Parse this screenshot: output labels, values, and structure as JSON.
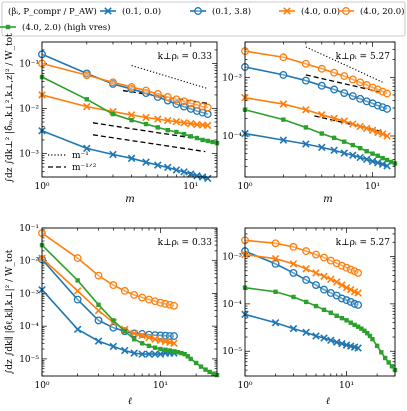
{
  "figure": {
    "y_label_top": "∫dz ∫dk⊥² |δ̂ₘ,k⊥²,k⊥,z|² / W_tot",
    "y_label_bottom": "∫dz ∫dk∥ |δ̂ℓ,k∥,k⊥|² / W_tot",
    "x_label_top": "m",
    "x_label_bottom": "ℓ"
  },
  "legend": {
    "title": "(βᵢ, P_compr / P_AW)",
    "placement": "top",
    "entries": [
      {
        "label": "(0.1, 0.0)",
        "color": "#1f77b4",
        "marker": "x"
      },
      {
        "label": "(0.1, 3.8)",
        "color": "#1f77b4",
        "marker": "o"
      },
      {
        "label": "(4.0, 0.0)",
        "color": "#ff7f0e",
        "marker": "x"
      },
      {
        "label": "(4.0, 20.0)",
        "color": "#ff7f0e",
        "marker": "o"
      },
      {
        "label": "(4.0, 2.0) (high vres)",
        "color": "#2ca02c",
        "marker": "s"
      }
    ]
  },
  "guide_legend": [
    {
      "label": "m⁻¹",
      "style": "dotted"
    },
    {
      "label": "m⁻¹ᐟ²",
      "style": "dashed"
    }
  ],
  "chart_data": [
    {
      "type": "line",
      "panel": "top-left",
      "annotation": "k⊥ρᵢ = 0.33",
      "xlabel": "m",
      "ylabel": "∫dz ∫dk⊥² |δ̂ₘ,k⊥²,k⊥,z|² / W_tot",
      "xscale": "log",
      "yscale": "log",
      "xlim": [
        1,
        15
      ],
      "ylim": [
        0.0003,
        0.3
      ],
      "xticks": [
        {
          "v": 1,
          "label": "10⁰"
        },
        {
          "v": 10,
          "label": "10¹"
        }
      ],
      "yticks": [
        {
          "v": 0.001,
          "label": "10⁻³"
        },
        {
          "v": 0.01,
          "label": "10⁻²"
        },
        {
          "v": 0.1,
          "label": "10⁻¹"
        }
      ],
      "series": [
        {
          "name": "(0.1, 0.0)",
          "color": "#1f77b4",
          "marker": "x",
          "x": [
            1,
            2,
            3,
            4,
            5,
            6,
            7,
            8,
            9,
            10,
            11,
            12,
            13
          ],
          "y": [
            0.0032,
            0.0013,
            0.00095,
            0.00078,
            0.00064,
            0.00055,
            0.00049,
            0.00043,
            0.00039,
            0.00035,
            0.00032,
            0.0003,
            0.00028
          ]
        },
        {
          "name": "(0.1, 3.8)",
          "color": "#1f77b4",
          "marker": "o",
          "x": [
            1,
            2,
            3,
            4,
            5,
            6,
            7,
            8,
            9,
            10,
            11,
            12,
            13
          ],
          "y": [
            0.16,
            0.06,
            0.035,
            0.027,
            0.022,
            0.018,
            0.015,
            0.0125,
            0.011,
            0.0098,
            0.0088,
            0.0081,
            0.0075
          ]
        },
        {
          "name": "(4.0, 0.0)",
          "color": "#ff7f0e",
          "marker": "x",
          "x": [
            1,
            2,
            3,
            4,
            5,
            6,
            7,
            8,
            9,
            10,
            11,
            12,
            13
          ],
          "y": [
            0.02,
            0.011,
            0.0085,
            0.0072,
            0.0063,
            0.0058,
            0.0054,
            0.0051,
            0.0048,
            0.0046,
            0.0044,
            0.0043,
            0.0042
          ]
        },
        {
          "name": "(4.0, 20.0)",
          "color": "#ff7f0e",
          "marker": "o",
          "x": [
            1,
            2,
            3,
            4,
            5,
            6,
            7,
            8,
            9,
            10,
            11,
            12,
            13
          ],
          "y": [
            0.1,
            0.055,
            0.038,
            0.03,
            0.025,
            0.021,
            0.018,
            0.016,
            0.0145,
            0.013,
            0.012,
            0.011,
            0.0105
          ]
        },
        {
          "name": "(4.0, 2.0) (high vres)",
          "color": "#2ca02c",
          "marker": "s",
          "x": [
            1,
            2,
            3,
            4,
            5,
            6,
            7,
            8,
            9,
            10,
            11,
            12,
            13,
            14,
            15
          ],
          "y": [
            0.05,
            0.016,
            0.0075,
            0.0055,
            0.0045,
            0.0038,
            0.0033,
            0.003,
            0.0027,
            0.0024,
            0.0022,
            0.002,
            0.0019,
            0.0018,
            0.0017
          ]
        }
      ],
      "guides": [
        {
          "style": "dotted",
          "x": [
            4,
            13
          ],
          "y": [
            0.09,
            0.0277
          ]
        },
        {
          "style": "dashed",
          "x": [
            3.5,
            13
          ],
          "y": [
            0.025,
            0.013
          ]
        },
        {
          "style": "dashed",
          "x": [
            2.2,
            12.5
          ],
          "y": [
            0.0048,
            0.002
          ]
        },
        {
          "style": "dashed",
          "x": [
            2.2,
            12.5
          ],
          "y": [
            0.0026,
            0.0011
          ]
        }
      ]
    },
    {
      "type": "line",
      "panel": "top-right",
      "annotation": "k⊥ρᵢ = 5.27",
      "xlabel": "m",
      "xscale": "log",
      "yscale": "log",
      "xlim": [
        1,
        15
      ],
      "ylim": [
        2e-05,
        0.004
      ],
      "xticks": [
        {
          "v": 1,
          "label": "10⁰"
        },
        {
          "v": 10,
          "label": "10¹"
        }
      ],
      "yticks": [
        {
          "v": 0.0001,
          "label": "10⁻⁴"
        },
        {
          "v": 0.001,
          "label": "10⁻³"
        }
      ],
      "series": [
        {
          "name": "(0.1, 0.0)",
          "color": "#1f77b4",
          "marker": "x",
          "x": [
            1,
            2,
            3,
            4,
            5,
            6,
            7,
            8,
            9,
            10,
            11,
            12,
            13
          ],
          "y": [
            0.00011,
            8.5e-05,
            7.3e-05,
            6.4e-05,
            5.7e-05,
            5.1e-05,
            4.7e-05,
            4.3e-05,
            4e-05,
            3.7e-05,
            3.5e-05,
            3.3e-05,
            3.1e-05
          ]
        },
        {
          "name": "(0.1, 3.8)",
          "color": "#1f77b4",
          "marker": "o",
          "x": [
            1,
            2,
            3,
            4,
            5,
            6,
            7,
            8,
            9,
            10,
            11,
            12,
            13
          ],
          "y": [
            0.0015,
            0.0011,
            0.00088,
            0.00072,
            0.00062,
            0.00054,
            0.00048,
            0.00043,
            0.00039,
            0.00036,
            0.00033,
            0.00031,
            0.00029
          ]
        },
        {
          "name": "(4.0, 0.0)",
          "color": "#ff7f0e",
          "marker": "x",
          "x": [
            1,
            2,
            3,
            4,
            5,
            6,
            7,
            8,
            9,
            10,
            11,
            12,
            13
          ],
          "y": [
            0.00045,
            0.00035,
            0.00028,
            0.00023,
            0.0002,
            0.00018,
            0.00016,
            0.000145,
            0.000135,
            0.000125,
            0.000115,
            0.000108,
            0.0001
          ]
        },
        {
          "name": "(4.0, 20.0)",
          "color": "#ff7f0e",
          "marker": "o",
          "x": [
            1,
            2,
            3,
            4,
            5,
            6,
            7,
            8,
            9,
            10,
            11,
            12,
            13
          ],
          "y": [
            0.0028,
            0.0022,
            0.0017,
            0.0014,
            0.0012,
            0.00105,
            0.00092,
            0.00082,
            0.00074,
            0.00067,
            0.00062,
            0.00057,
            0.00053
          ]
        },
        {
          "name": "(4.0, 2.0) (high vres)",
          "color": "#2ca02c",
          "marker": "s",
          "x": [
            1,
            2,
            3,
            4,
            5,
            6,
            7,
            8,
            9,
            10,
            11,
            12,
            13,
            14,
            15
          ],
          "y": [
            0.00028,
            0.00019,
            0.00014,
            0.00011,
            9.3e-05,
            8e-05,
            7e-05,
            6.2e-05,
            5.5e-05,
            5e-05,
            4.6e-05,
            4.2e-05,
            3.9e-05,
            3.6e-05,
            3.4e-05
          ]
        }
      ],
      "guides": [
        {
          "style": "dotted",
          "x": [
            3,
            12
          ],
          "y": [
            0.0033,
            0.000825
          ]
        },
        {
          "style": "dashed",
          "x": [
            3,
            12
          ],
          "y": [
            0.0011,
            0.00055
          ]
        },
        {
          "style": "dashed",
          "x": [
            3.5,
            12
          ],
          "y": [
            0.00022,
            0.000119
          ]
        }
      ]
    },
    {
      "type": "line",
      "panel": "bottom-left",
      "annotation": "k⊥ρᵢ = 0.33",
      "xlabel": "ℓ",
      "ylabel": "∫dz ∫dk∥ |δ̂ℓ,k∥,k⊥|² / W_tot",
      "xscale": "log",
      "yscale": "log",
      "xlim": [
        1,
        30
      ],
      "ylim": [
        3e-06,
        0.1
      ],
      "xticks": [
        {
          "v": 1,
          "label": "10⁰"
        },
        {
          "v": 10,
          "label": "10¹"
        }
      ],
      "yticks": [
        {
          "v": 1e-05,
          "label": "10⁻⁵"
        },
        {
          "v": 0.0001,
          "label": "10⁻⁴"
        },
        {
          "v": 0.001,
          "label": "10⁻³"
        },
        {
          "v": 0.01,
          "label": "10⁻²"
        },
        {
          "v": 0.1,
          "label": "10⁻¹"
        }
      ],
      "series": [
        {
          "name": "(0.1, 0.0)",
          "color": "#1f77b4",
          "marker": "x",
          "x": [
            1,
            2,
            3,
            4,
            5,
            6,
            7,
            8,
            9,
            10,
            11,
            12,
            13
          ],
          "y": [
            0.0013,
            8e-05,
            3.5e-05,
            2.4e-05,
            1.8e-05,
            1.5e-05,
            1.4e-05,
            1.4e-05,
            1.4e-05,
            1.4e-05,
            1.5e-05,
            1.5e-05,
            1.5e-05
          ]
        },
        {
          "name": "(0.1, 3.8)",
          "color": "#1f77b4",
          "marker": "o",
          "x": [
            1,
            2,
            3,
            4,
            5,
            6,
            7,
            8,
            9,
            10,
            11,
            12,
            13
          ],
          "y": [
            0.011,
            0.00065,
            0.00015,
            9e-05,
            7e-05,
            6e-05,
            5.8e-05,
            5.5e-05,
            5.3e-05,
            5.2e-05,
            5.1e-05,
            5e-05,
            5e-05
          ]
        },
        {
          "name": "(4.0, 0.0)",
          "color": "#ff7f0e",
          "marker": "x",
          "x": [
            1,
            2,
            3,
            4,
            5,
            6,
            7,
            8,
            9,
            10,
            11,
            12,
            13
          ],
          "y": [
            0.012,
            0.0012,
            0.0003,
            0.00013,
            8e-05,
            6e-05,
            5.2e-05,
            4.5e-05,
            4e-05,
            3.7e-05,
            3.4e-05,
            3.2e-05,
            3e-05
          ]
        },
        {
          "name": "(4.0, 20.0)",
          "color": "#ff7f0e",
          "marker": "o",
          "x": [
            1,
            2,
            3,
            4,
            5,
            6,
            7,
            8,
            9,
            10,
            11,
            12,
            13
          ],
          "y": [
            0.07,
            0.012,
            0.0035,
            0.0018,
            0.0012,
            0.0009,
            0.00075,
            0.00065,
            0.00058,
            0.00052,
            0.00048,
            0.00045,
            0.00042
          ]
        },
        {
          "name": "(4.0, 2.0) (high vres)",
          "color": "#2ca02c",
          "marker": "s",
          "x": [
            1,
            2,
            3,
            4,
            5,
            6,
            7,
            8,
            9,
            10,
            11,
            12,
            13,
            14,
            15,
            16,
            17,
            18,
            20,
            22,
            24,
            26,
            28,
            30
          ],
          "y": [
            0.03,
            0.0025,
            0.00045,
            0.00015,
            7e-05,
            4e-05,
            3e-05,
            2.5e-05,
            2.2e-05,
            2e-05,
            1.9e-05,
            1.8e-05,
            1.7e-05,
            1.6e-05,
            1.5e-05,
            1.4e-05,
            1.2e-05,
            1e-05,
            7.5e-06,
            5.8e-06,
            4.7e-06,
            4e-06,
            3.5e-06,
            3.2e-06
          ]
        }
      ]
    },
    {
      "type": "line",
      "panel": "bottom-right",
      "annotation": "k⊥ρᵢ = 5.27",
      "xlabel": "ℓ",
      "xscale": "log",
      "yscale": "log",
      "xlim": [
        1,
        30
      ],
      "ylim": [
        3e-06,
        0.004
      ],
      "xticks": [
        {
          "v": 1,
          "label": "10⁰"
        },
        {
          "v": 10,
          "label": "10¹"
        }
      ],
      "yticks": [
        {
          "v": 1e-05,
          "label": "10⁻⁵"
        },
        {
          "v": 0.0001,
          "label": "10⁻⁴"
        },
        {
          "v": 0.001,
          "label": "10⁻³"
        }
      ],
      "series": [
        {
          "name": "(0.1, 0.0)",
          "color": "#1f77b4",
          "marker": "x",
          "x": [
            1,
            2,
            3,
            4,
            5,
            6,
            7,
            8,
            9,
            10,
            11,
            12,
            13
          ],
          "y": [
            6e-05,
            4e-05,
            3e-05,
            2.5e-05,
            2.1e-05,
            1.9e-05,
            1.7e-05,
            1.55e-05,
            1.45e-05,
            1.35e-05,
            1.28e-05,
            1.22e-05,
            1.17e-05
          ]
        },
        {
          "name": "(0.1, 3.8)",
          "color": "#1f77b4",
          "marker": "o",
          "x": [
            1,
            2,
            3,
            4,
            5,
            6,
            7,
            8,
            9,
            10,
            11,
            12,
            13
          ],
          "y": [
            0.0013,
            0.0007,
            0.00045,
            0.00032,
            0.00025,
            0.0002,
            0.00017,
            0.00015,
            0.00013,
            0.00012,
            0.00011,
            0.0001,
            9.5e-05
          ]
        },
        {
          "name": "(4.0, 0.0)",
          "color": "#ff7f0e",
          "marker": "x",
          "x": [
            1,
            2,
            3,
            4,
            5,
            6,
            7,
            8,
            9,
            10,
            11,
            12,
            13
          ],
          "y": [
            0.0011,
            0.0009,
            0.0007,
            0.00055,
            0.00045,
            0.00038,
            0.00033,
            0.00029,
            0.00025,
            0.00022,
            0.0002,
            0.00018,
            0.00017
          ]
        },
        {
          "name": "(4.0, 20.0)",
          "color": "#ff7f0e",
          "marker": "o",
          "x": [
            1,
            2,
            3,
            4,
            5,
            6,
            7,
            8,
            9,
            10,
            11,
            12,
            13
          ],
          "y": [
            0.0022,
            0.0019,
            0.0016,
            0.0013,
            0.0011,
            0.00095,
            0.00082,
            0.00072,
            0.00064,
            0.00058,
            0.00053,
            0.00049,
            0.00045
          ]
        },
        {
          "name": "(4.0, 2.0) (high vres)",
          "color": "#2ca02c",
          "marker": "s",
          "x": [
            1,
            2,
            3,
            4,
            5,
            6,
            7,
            8,
            9,
            10,
            11,
            12,
            13,
            14,
            15,
            16,
            17,
            18,
            20,
            22,
            24,
            26,
            28,
            30
          ],
          "y": [
            0.00022,
            0.00018,
            0.00014,
            0.00011,
            9e-05,
            7.5e-05,
            6.5e-05,
            5.6e-05,
            5e-05,
            4.5e-05,
            4e-05,
            3.6e-05,
            3.3e-05,
            3e-05,
            2.7e-05,
            2.4e-05,
            2.1e-05,
            1.8e-05,
            1.3e-05,
            9.5e-06,
            7.2e-06,
            5.8e-06,
            4.8e-06,
            4e-06
          ]
        }
      ]
    }
  ]
}
